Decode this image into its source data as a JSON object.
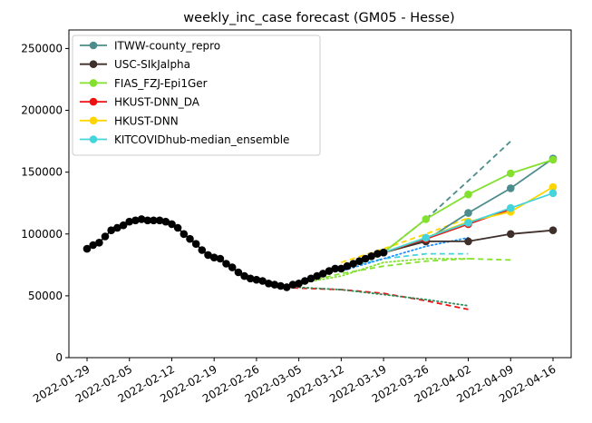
{
  "chart_data": {
    "type": "line",
    "title": "weekly_inc_case forecast (GM05 - Hesse)",
    "xlabel": "",
    "ylabel": "",
    "xlim": [
      "2022-01-26",
      "2022-04-19"
    ],
    "ylim": [
      0,
      265000
    ],
    "x_ticks": [
      "2022-01-29",
      "2022-02-05",
      "2022-02-12",
      "2022-02-19",
      "2022-02-26",
      "2022-03-05",
      "2022-03-12",
      "2022-03-19",
      "2022-03-26",
      "2022-04-02",
      "2022-04-09",
      "2022-04-16"
    ],
    "y_ticks": [
      0,
      50000,
      100000,
      150000,
      200000,
      250000
    ],
    "y_tick_labels": [
      "0",
      "50000",
      "100000",
      "150000",
      "200000",
      "250000"
    ],
    "legend_position": "upper-left",
    "observed": {
      "x": [
        "2022-01-29",
        "2022-01-30",
        "2022-01-31",
        "2022-02-01",
        "2022-02-02",
        "2022-02-03",
        "2022-02-04",
        "2022-02-05",
        "2022-02-06",
        "2022-02-07",
        "2022-02-08",
        "2022-02-09",
        "2022-02-10",
        "2022-02-11",
        "2022-02-12",
        "2022-02-13",
        "2022-02-14",
        "2022-02-15",
        "2022-02-16",
        "2022-02-17",
        "2022-02-18",
        "2022-02-19",
        "2022-02-20",
        "2022-02-21",
        "2022-02-22",
        "2022-02-23",
        "2022-02-24",
        "2022-02-25",
        "2022-02-26",
        "2022-02-27",
        "2022-02-28",
        "2022-03-01",
        "2022-03-02",
        "2022-03-03",
        "2022-03-04",
        "2022-03-05",
        "2022-03-06",
        "2022-03-07",
        "2022-03-08",
        "2022-03-09",
        "2022-03-10",
        "2022-03-11",
        "2022-03-12",
        "2022-03-13",
        "2022-03-14",
        "2022-03-15",
        "2022-03-16",
        "2022-03-17",
        "2022-03-18",
        "2022-03-19"
      ],
      "y": [
        88000,
        91000,
        93000,
        98000,
        103000,
        105000,
        107000,
        110000,
        111000,
        112000,
        111000,
        111000,
        111000,
        110000,
        108000,
        105000,
        100000,
        96000,
        92000,
        87000,
        83000,
        81000,
        80000,
        76000,
        73000,
        69000,
        66000,
        64000,
        63000,
        62000,
        60000,
        59000,
        58000,
        57000,
        59000,
        60000,
        62000,
        64000,
        66000,
        68000,
        70000,
        72000,
        72000,
        74000,
        76000,
        78000,
        80000,
        82000,
        84000,
        85000
      ],
      "color": "#000000"
    },
    "series": [
      {
        "name": "ITWW-county_repro",
        "color": "#4c8c8c",
        "x": [
          "2022-03-19",
          "2022-03-26",
          "2022-04-02",
          "2022-04-09",
          "2022-04-16"
        ],
        "values": [
          85000,
          95000,
          117000,
          137000,
          161000
        ],
        "upper": {
          "x": [
            "2022-03-19",
            "2022-03-26",
            "2022-04-02",
            "2022-04-09"
          ],
          "values": [
            85000,
            112000,
            143000,
            175000
          ]
        }
      },
      {
        "name": "USC-SIkJalpha",
        "color": "#3e2f2b",
        "x": [
          "2022-03-19",
          "2022-03-26",
          "2022-04-02",
          "2022-04-09",
          "2022-04-16"
        ],
        "values": [
          85000,
          94000,
          94000,
          100000,
          103000
        ]
      },
      {
        "name": "FIAS_FZJ-Epi1Ger",
        "color": "#84e02e",
        "x": [
          "2022-03-19",
          "2022-03-26",
          "2022-04-02",
          "2022-04-09",
          "2022-04-16"
        ],
        "values": [
          85000,
          112000,
          132000,
          149000,
          160000
        ],
        "lower": {
          "x": [
            "2022-03-05",
            "2022-03-12",
            "2022-03-19",
            "2022-03-26",
            "2022-04-02",
            "2022-04-09"
          ],
          "values": [
            60000,
            68000,
            74000,
            78000,
            80000,
            79000
          ]
        }
      },
      {
        "name": "HKUST-DNN_DA",
        "color": "#ee1111",
        "x": [
          "2022-03-19",
          "2022-03-26",
          "2022-04-02",
          "2022-04-09"
        ],
        "values": [
          85000,
          96000,
          108000,
          120000
        ],
        "lower": {
          "x": [
            "2022-03-01",
            "2022-03-12",
            "2022-03-19",
            "2022-03-26",
            "2022-04-02"
          ],
          "values": [
            57000,
            55000,
            52000,
            46000,
            39000
          ]
        }
      },
      {
        "name": "HKUST-DNN",
        "color": "#ffd500",
        "x": [
          "2022-03-19",
          "2022-03-26",
          "2022-04-02",
          "2022-04-09",
          "2022-04-16"
        ],
        "values": [
          85000,
          97000,
          110000,
          118000,
          138000
        ],
        "upper": {
          "x": [
            "2022-03-12",
            "2022-03-19",
            "2022-03-26",
            "2022-04-02"
          ],
          "values": [
            77000,
            88000,
            100000,
            113000
          ]
        }
      },
      {
        "name": "KITCOVIDhub-median_ensemble",
        "color": "#45d4dc",
        "x": [
          "2022-03-19",
          "2022-03-26",
          "2022-04-02",
          "2022-04-09",
          "2022-04-16"
        ],
        "values": [
          85000,
          97000,
          109000,
          121000,
          133000
        ],
        "lower": {
          "x": [
            "2022-03-12",
            "2022-03-19",
            "2022-03-26",
            "2022-04-02"
          ],
          "values": [
            72000,
            80000,
            84000,
            84000
          ]
        }
      }
    ],
    "extra_lines": [
      {
        "color": "#2e8b57",
        "style": "dotted",
        "x": [
          "2022-03-01",
          "2022-03-12",
          "2022-03-19",
          "2022-03-26",
          "2022-04-02"
        ],
        "values": [
          58000,
          55000,
          51000,
          47000,
          42000
        ]
      },
      {
        "color": "#84e02e",
        "style": "dotted",
        "x": [
          "2022-03-05",
          "2022-03-12",
          "2022-03-19",
          "2022-03-26",
          "2022-04-02"
        ],
        "values": [
          60000,
          66000,
          77000,
          80000,
          80000
        ]
      },
      {
        "color": "#1e90ff",
        "style": "dotted",
        "x": [
          "2022-03-12",
          "2022-03-19",
          "2022-03-26",
          "2022-04-02"
        ],
        "values": [
          70000,
          80000,
          90000,
          97000
        ]
      }
    ]
  }
}
